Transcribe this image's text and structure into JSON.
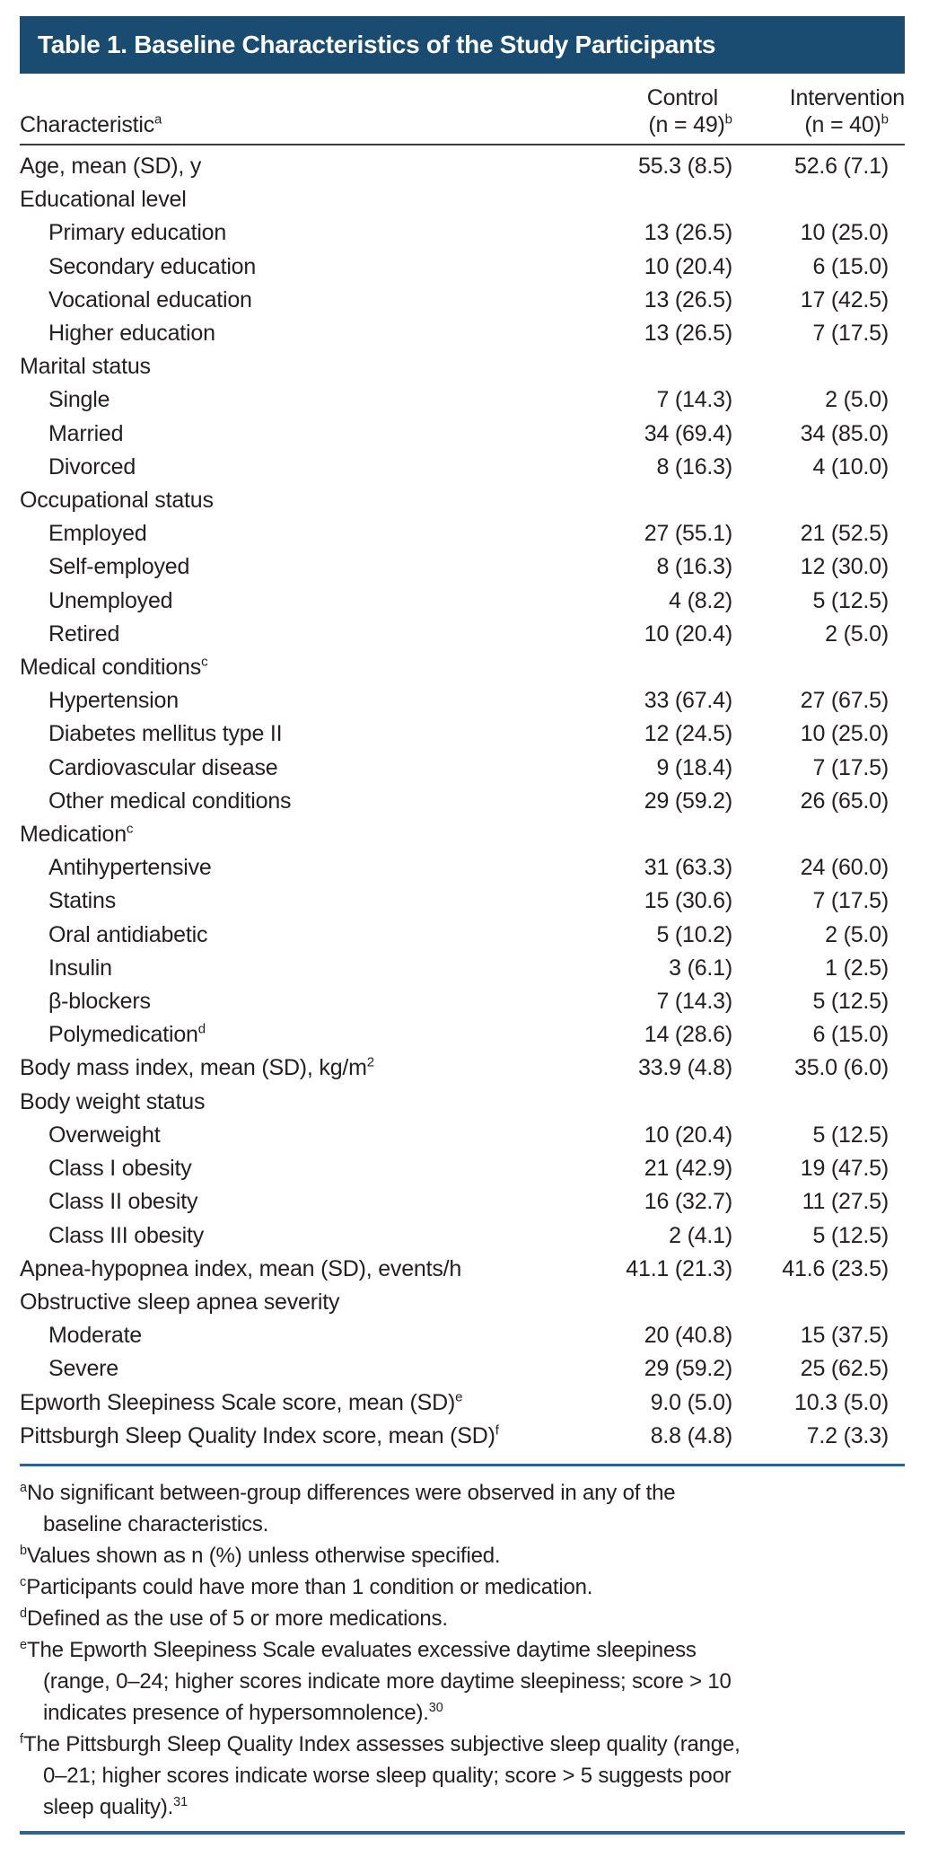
{
  "colors": {
    "header_bg": "#1a4b70",
    "rule_dark": "#3b3b3b",
    "rule_blue": "#2b6396",
    "text": "#231f20"
  },
  "header": {
    "title": "Table 1. Baseline Characteristics of the Study Participants"
  },
  "columns": {
    "characteristic": {
      "label": "Characteristic",
      "sup": "a"
    },
    "control": {
      "line1": "Control",
      "line2": "(n = 49)",
      "sup": "b"
    },
    "intervention": {
      "line1": "Intervention",
      "line2": "(n = 40)",
      "sup": "b"
    }
  },
  "rows": [
    {
      "label": "Age, mean (SD), y",
      "sup": "",
      "indent": 0,
      "control": "55.3 (8.5)",
      "intervention": "52.6 (7.1)"
    },
    {
      "label": "Educational level",
      "sup": "",
      "indent": 0,
      "control": "",
      "intervention": ""
    },
    {
      "label": "Primary education",
      "sup": "",
      "indent": 1,
      "control": "13 (26.5)",
      "intervention": "10 (25.0)"
    },
    {
      "label": "Secondary education",
      "sup": "",
      "indent": 1,
      "control": "10 (20.4)",
      "intervention": "6 (15.0)"
    },
    {
      "label": "Vocational education",
      "sup": "",
      "indent": 1,
      "control": "13 (26.5)",
      "intervention": "17 (42.5)"
    },
    {
      "label": "Higher education",
      "sup": "",
      "indent": 1,
      "control": "13 (26.5)",
      "intervention": "7 (17.5)"
    },
    {
      "label": "Marital status",
      "sup": "",
      "indent": 0,
      "control": "",
      "intervention": ""
    },
    {
      "label": "Single",
      "sup": "",
      "indent": 1,
      "control": "7 (14.3)",
      "intervention": "2 (5.0)"
    },
    {
      "label": "Married",
      "sup": "",
      "indent": 1,
      "control": "34 (69.4)",
      "intervention": "34 (85.0)"
    },
    {
      "label": "Divorced",
      "sup": "",
      "indent": 1,
      "control": "8 (16.3)",
      "intervention": "4 (10.0)"
    },
    {
      "label": "Occupational status",
      "sup": "",
      "indent": 0,
      "control": "",
      "intervention": ""
    },
    {
      "label": "Employed",
      "sup": "",
      "indent": 1,
      "control": "27 (55.1)",
      "intervention": "21 (52.5)"
    },
    {
      "label": "Self-employed",
      "sup": "",
      "indent": 1,
      "control": "8 (16.3)",
      "intervention": "12 (30.0)"
    },
    {
      "label": "Unemployed",
      "sup": "",
      "indent": 1,
      "control": "4 (8.2)",
      "intervention": "5 (12.5)"
    },
    {
      "label": "Retired",
      "sup": "",
      "indent": 1,
      "control": "10 (20.4)",
      "intervention": "2 (5.0)"
    },
    {
      "label": "Medical conditions",
      "sup": "c",
      "indent": 0,
      "control": "",
      "intervention": ""
    },
    {
      "label": "Hypertension",
      "sup": "",
      "indent": 1,
      "control": "33 (67.4)",
      "intervention": "27 (67.5)"
    },
    {
      "label": "Diabetes mellitus type II",
      "sup": "",
      "indent": 1,
      "control": "12 (24.5)",
      "intervention": "10 (25.0)"
    },
    {
      "label": "Cardiovascular disease",
      "sup": "",
      "indent": 1,
      "control": "9 (18.4)",
      "intervention": "7 (17.5)"
    },
    {
      "label": "Other medical conditions",
      "sup": "",
      "indent": 1,
      "control": "29 (59.2)",
      "intervention": "26 (65.0)"
    },
    {
      "label": "Medication",
      "sup": "c",
      "indent": 0,
      "control": "",
      "intervention": ""
    },
    {
      "label": "Antihypertensive",
      "sup": "",
      "indent": 1,
      "control": "31 (63.3)",
      "intervention": "24 (60.0)"
    },
    {
      "label": "Statins",
      "sup": "",
      "indent": 1,
      "control": "15 (30.6)",
      "intervention": "7 (17.5)"
    },
    {
      "label": "Oral antidiabetic",
      "sup": "",
      "indent": 1,
      "control": "5 (10.2)",
      "intervention": "2 (5.0)"
    },
    {
      "label": "Insulin",
      "sup": "",
      "indent": 1,
      "control": "3 (6.1)",
      "intervention": "1 (2.5)"
    },
    {
      "label": "β-blockers",
      "sup": "",
      "indent": 1,
      "control": "7 (14.3)",
      "intervention": "5 (12.5)"
    },
    {
      "label": "Polymedication",
      "sup": "d",
      "indent": 1,
      "control": "14 (28.6)",
      "intervention": "6 (15.0)"
    },
    {
      "label": "Body mass index, mean (SD), kg/m",
      "sup": "2",
      "indent": 0,
      "control": "33.9 (4.8)",
      "intervention": "35.0 (6.0)"
    },
    {
      "label": "Body weight status",
      "sup": "",
      "indent": 0,
      "control": "",
      "intervention": ""
    },
    {
      "label": "Overweight",
      "sup": "",
      "indent": 1,
      "control": "10 (20.4)",
      "intervention": "5 (12.5)"
    },
    {
      "label": "Class I obesity",
      "sup": "",
      "indent": 1,
      "control": "21 (42.9)",
      "intervention": "19 (47.5)"
    },
    {
      "label": "Class II obesity",
      "sup": "",
      "indent": 1,
      "control": "16 (32.7)",
      "intervention": "11 (27.5)"
    },
    {
      "label": "Class III obesity",
      "sup": "",
      "indent": 1,
      "control": "2 (4.1)",
      "intervention": "5 (12.5)"
    },
    {
      "label": "Apnea-hypopnea index, mean (SD), events/h",
      "sup": "",
      "indent": 0,
      "control": "41.1 (21.3)",
      "intervention": "41.6 (23.5)"
    },
    {
      "label": "Obstructive sleep apnea severity",
      "sup": "",
      "indent": 0,
      "control": "",
      "intervention": ""
    },
    {
      "label": "Moderate",
      "sup": "",
      "indent": 1,
      "control": "20 (40.8)",
      "intervention": "15 (37.5)"
    },
    {
      "label": "Severe",
      "sup": "",
      "indent": 1,
      "control": "29 (59.2)",
      "intervention": "25 (62.5)"
    },
    {
      "label": "Epworth Sleepiness Scale score, mean (SD)",
      "sup": "e",
      "indent": 0,
      "control": "9.0 (5.0)",
      "intervention": "10.3 (5.0)"
    },
    {
      "label": "Pittsburgh Sleep Quality Index score, mean (SD)",
      "sup": "f",
      "indent": 0,
      "control": "8.8 (4.8)",
      "intervention": "7.2 (3.3)"
    }
  ],
  "footnotes": [
    {
      "sup": "a",
      "lines": [
        "No significant between-group differences were observed in any of the",
        "baseline characteristics."
      ],
      "ref": ""
    },
    {
      "sup": "b",
      "lines": [
        "Values shown as n (%) unless otherwise specified."
      ],
      "ref": ""
    },
    {
      "sup": "c",
      "lines": [
        "Participants could have more than 1 condition or medication."
      ],
      "ref": ""
    },
    {
      "sup": "d",
      "lines": [
        "Defined as the use of 5 or more medications."
      ],
      "ref": ""
    },
    {
      "sup": "e",
      "lines": [
        "The Epworth Sleepiness Scale evaluates excessive daytime sleepiness",
        "(range, 0–24; higher scores indicate more daytime sleepiness; score > 10",
        "indicates presence of hypersomnolence)."
      ],
      "ref": "30"
    },
    {
      "sup": "f",
      "lines": [
        "The Pittsburgh Sleep Quality Index assesses subjective sleep quality (range,",
        "0–21; higher scores indicate worse sleep quality; score > 5 suggests poor",
        "sleep quality)."
      ],
      "ref": "31"
    }
  ]
}
